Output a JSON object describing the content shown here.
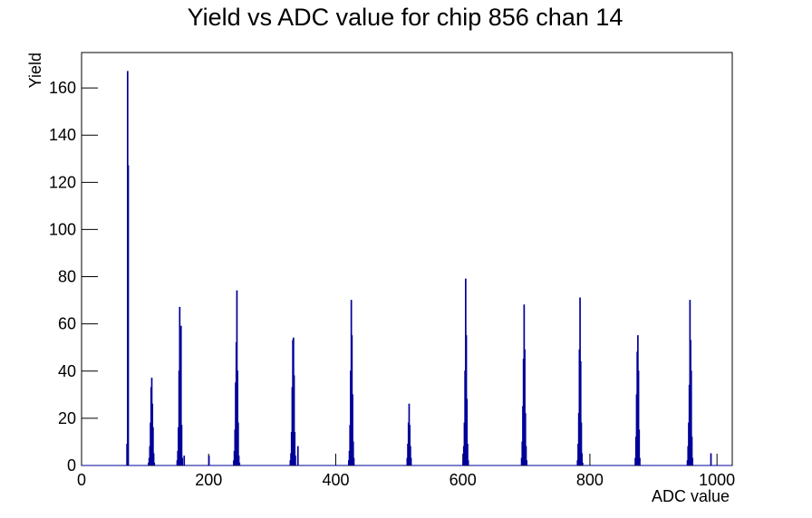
{
  "chart_data": {
    "type": "histogram",
    "title": "Yield vs ADC value for chip 856 chan 14",
    "x_label": "ADC value",
    "y_label": "Yield",
    "color": "#000099",
    "bins": [
      0,
      71,
      72,
      73,
      74,
      105,
      106,
      107,
      108,
      109,
      110,
      111,
      112,
      113,
      114,
      115,
      150,
      151,
      152,
      153,
      154,
      155,
      156,
      157,
      158,
      159,
      161,
      162,
      200,
      201,
      239,
      240,
      241,
      242,
      243,
      244,
      245,
      246,
      247,
      248,
      249,
      328,
      329,
      330,
      331,
      332,
      333,
      334,
      335,
      336,
      337,
      340,
      341,
      420,
      421,
      422,
      423,
      424,
      425,
      426,
      427,
      428,
      429,
      512,
      513,
      514,
      515,
      516,
      517,
      518,
      519,
      600,
      601,
      602,
      603,
      604,
      605,
      606,
      607,
      608,
      609,
      692,
      693,
      694,
      695,
      696,
      697,
      698,
      699,
      700,
      701,
      780,
      781,
      782,
      783,
      784,
      785,
      786,
      787,
      788,
      789,
      871,
      872,
      873,
      874,
      875,
      876,
      877,
      878,
      879,
      953,
      954,
      955,
      956,
      957,
      958,
      959,
      960,
      961,
      962,
      990,
      991,
      1024
    ],
    "counts": [
      0,
      9,
      167,
      127,
      0,
      1,
      3,
      8,
      18,
      33,
      37,
      26,
      16,
      5,
      1,
      0,
      2,
      6,
      16,
      40,
      67,
      58,
      59,
      17,
      3,
      0,
      4,
      0,
      4,
      0,
      2,
      6,
      15,
      35,
      52,
      74,
      40,
      18,
      4,
      1,
      0,
      2,
      5,
      14,
      33,
      53,
      54,
      38,
      14,
      4,
      0,
      8,
      0,
      2,
      6,
      17,
      40,
      70,
      55,
      30,
      10,
      3,
      0,
      3,
      9,
      18,
      26,
      17,
      8,
      3,
      0,
      2,
      8,
      18,
      40,
      79,
      55,
      28,
      9,
      2,
      0,
      3,
      10,
      25,
      45,
      68,
      49,
      22,
      8,
      2,
      0,
      2,
      9,
      22,
      49,
      71,
      44,
      18,
      5,
      1,
      0,
      3,
      12,
      30,
      48,
      55,
      40,
      15,
      3,
      0,
      2,
      8,
      18,
      34,
      70,
      53,
      40,
      12,
      3,
      0,
      5,
      0
    ],
    "xlim": [
      0,
      1024
    ],
    "ylim": [
      0,
      175
    ],
    "xticks": [
      0,
      200,
      400,
      600,
      800,
      1000
    ],
    "yticks": [
      0,
      20,
      40,
      60,
      80,
      100,
      120,
      140,
      160
    ]
  }
}
